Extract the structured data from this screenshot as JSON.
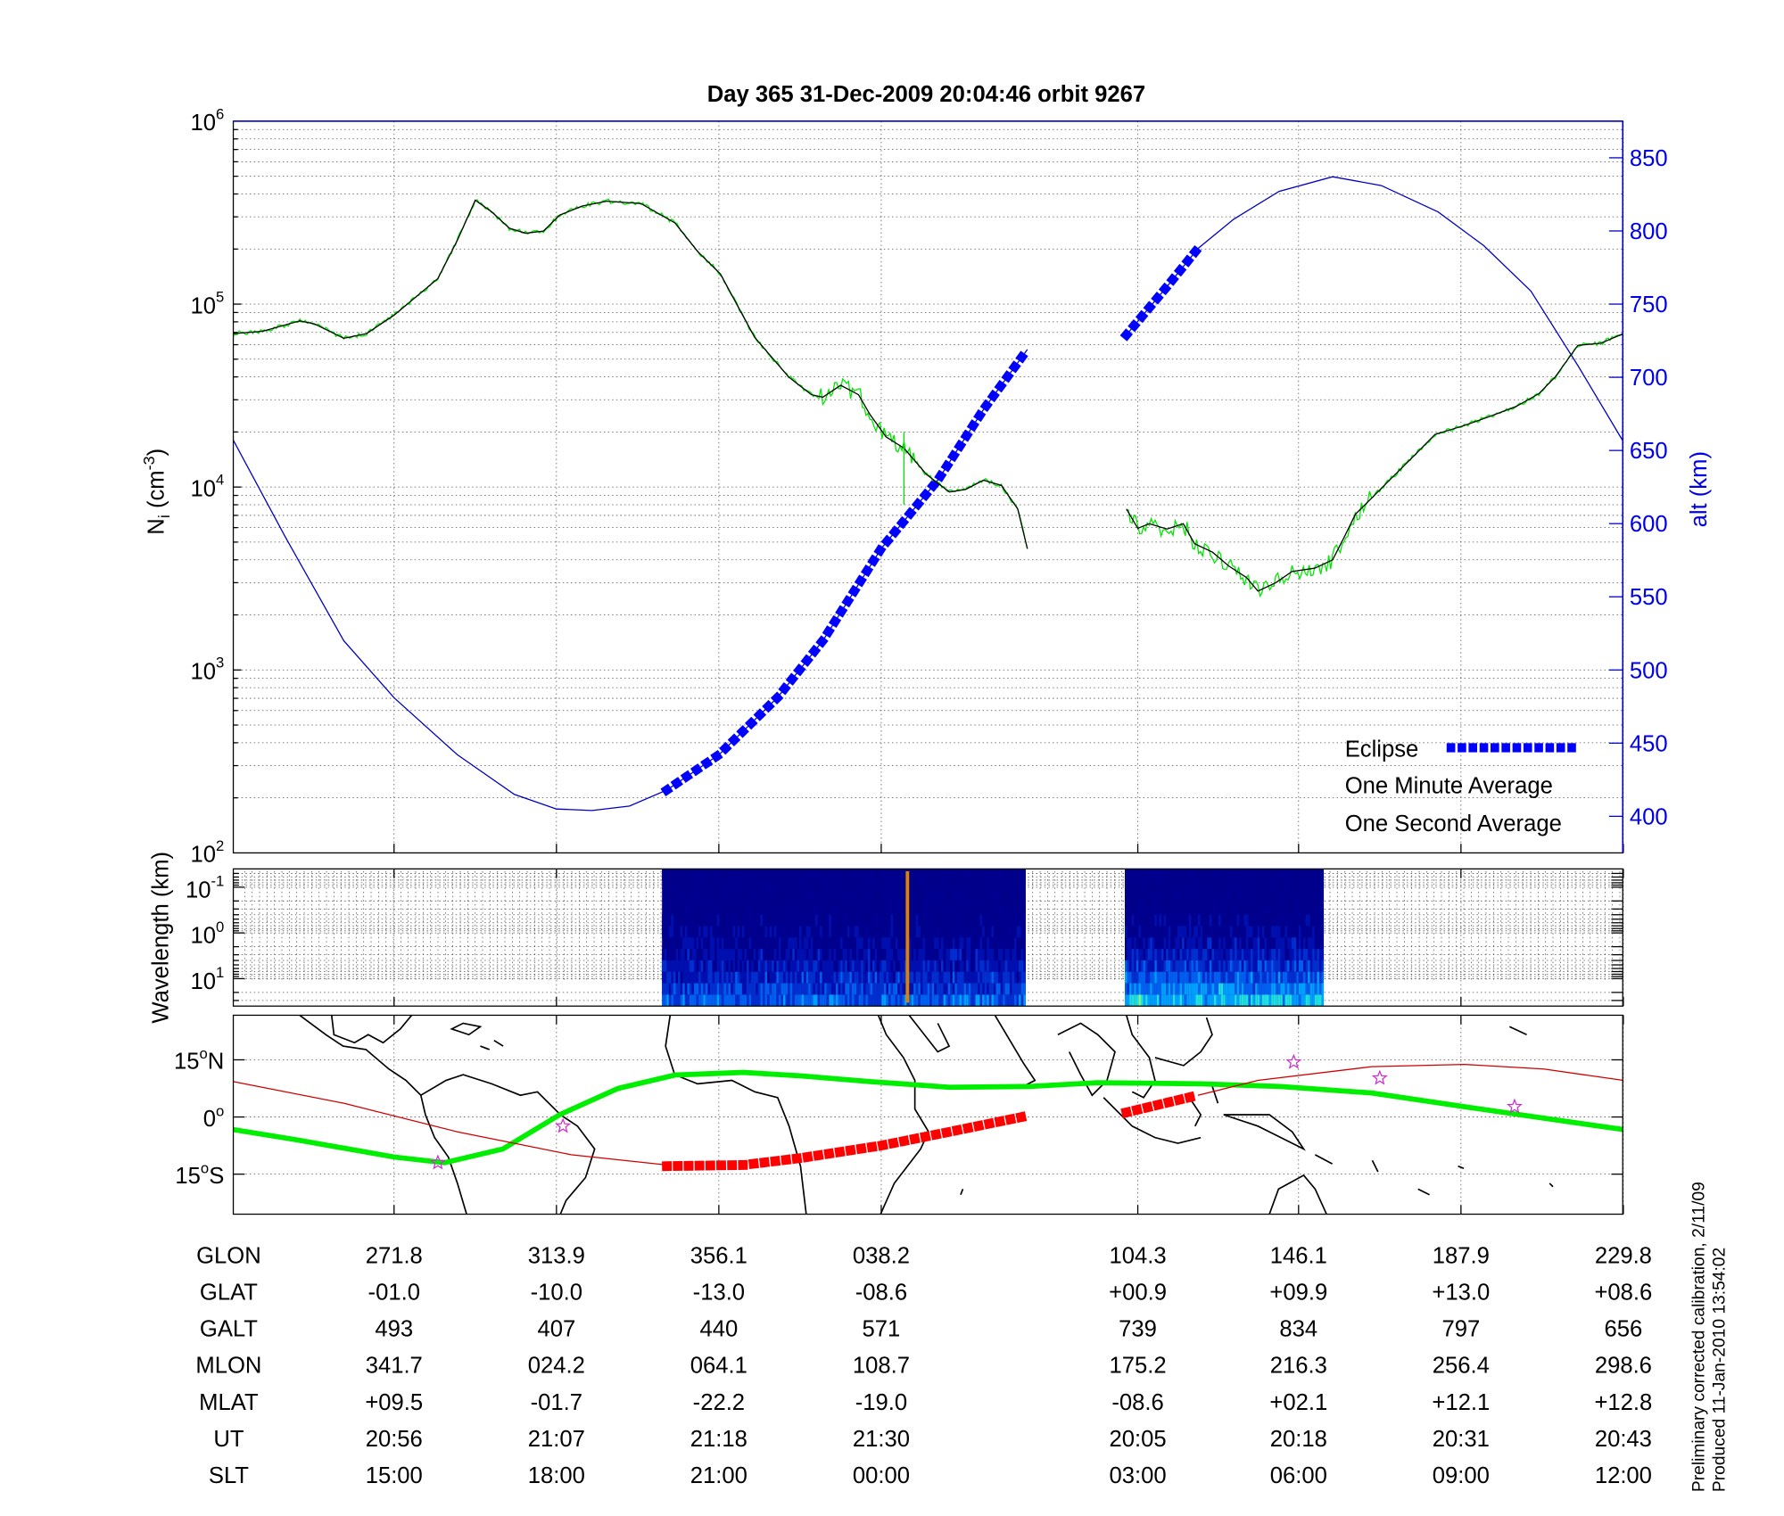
{
  "title": "Day 365  31-Dec-2009 20:04:46   orbit 9267",
  "footer": {
    "line1": "Preliminary corrected calibration, 2/11/09",
    "line2": "Produced 11-Jan-2010 13:54:02"
  },
  "colors": {
    "eclipse": "#0000ff",
    "minute": "#000000",
    "second": "#00e600",
    "altitude": "#0000c0",
    "track": "#d00000",
    "track_eclipse": "#ff0000",
    "dip_equator": "#00ee00",
    "star": "#cc33cc"
  },
  "chart_data": [
    {
      "type": "line",
      "name": "density-altitude",
      "x_unit": "orbit-time index (ticks at table columns)",
      "x_ticks": [
        99,
        199,
        299,
        399,
        557,
        656,
        756,
        856
      ],
      "xlim": [
        0,
        856
      ],
      "ylabel": "N",
      "ylabel_sub": "i",
      "ylabel_unit": " (cm",
      "ylabel_exp": "-3",
      "ylabel_close": ")",
      "yscale": "log",
      "ylim": [
        100,
        1000000
      ],
      "y_ticks": [
        {
          "base": "10",
          "exp": "6",
          "value": 1000000
        },
        {
          "base": "10",
          "exp": "5",
          "value": 100000
        },
        {
          "base": "10",
          "exp": "4",
          "value": 10000
        },
        {
          "base": "10",
          "exp": "3",
          "value": 1000
        },
        {
          "base": "10",
          "exp": "2",
          "value": 100
        }
      ],
      "y2label": "alt (km)",
      "y2lim": [
        375,
        875
      ],
      "y2_ticks": [
        "400",
        "450",
        "500",
        "550",
        "600",
        "650",
        "700",
        "750",
        "800",
        "850"
      ],
      "legend": {
        "placement": "bottom-right",
        "eclipse": "Eclipse",
        "minute": "One Minute Average",
        "second": "One Second Average"
      },
      "series": [
        {
          "name": "One Minute Average",
          "segments": [
            [
              [
                0,
                69000
              ],
              [
                18,
                71000
              ],
              [
                41,
                81000
              ],
              [
                50,
                78000
              ],
              [
                68,
                65000
              ],
              [
                82,
                69000
              ],
              [
                99,
                87000
              ],
              [
                126,
                138000
              ],
              [
                138,
                224000
              ],
              [
                149,
                370000
              ],
              [
                159,
                320000
              ],
              [
                170,
                260000
              ],
              [
                180,
                244000
              ],
              [
                191,
                251000
              ],
              [
                201,
                307000
              ],
              [
                215,
                344000
              ],
              [
                230,
                365000
              ],
              [
                251,
                355000
              ],
              [
                272,
                278000
              ],
              [
                286,
                194000
              ],
              [
                300,
                146000
              ],
              [
                321,
                66000
              ],
              [
                342,
                40000
              ],
              [
                356,
                32000
              ],
              [
                363,
                31000
              ],
              [
                374,
                36000
              ],
              [
                385,
                32000
              ],
              [
                392,
                25000
              ],
              [
                402,
                18800
              ],
              [
                413,
                16300
              ],
              [
                427,
                11700
              ],
              [
                441,
                9400
              ],
              [
                451,
                9700
              ],
              [
                462,
                10900
              ],
              [
                473,
                10200
              ],
              [
                483,
                7600
              ],
              [
                489,
                4600
              ]
            ],
            [
              [
                550,
                7600
              ],
              [
                557,
                5950
              ],
              [
                564,
                6300
              ],
              [
                575,
                5900
              ],
              [
                585,
                6300
              ],
              [
                592,
                4900
              ],
              [
                603,
                4400
              ],
              [
                613,
                3700
              ],
              [
                624,
                3200
              ],
              [
                631,
                2700
              ],
              [
                642,
                3000
              ],
              [
                652,
                3450
              ],
              [
                666,
                3600
              ],
              [
                677,
                4000
              ],
              [
                684,
                5300
              ],
              [
                691,
                7100
              ],
              [
                701,
                8700
              ],
              [
                712,
                10900
              ],
              [
                726,
                14500
              ],
              [
                740,
                19400
              ],
              [
                758,
                21700
              ],
              [
                772,
                24000
              ],
              [
                790,
                27600
              ],
              [
                804,
                32400
              ],
              [
                814,
                40000
              ],
              [
                828,
                59600
              ],
              [
                842,
                61000
              ],
              [
                856,
                69000
              ]
            ]
          ]
        },
        {
          "name": "Altitude (km)",
          "axis": "right",
          "segments": [
            [
              [
                0,
                657
              ],
              [
                32,
                591
              ],
              [
                68,
                520
              ],
              [
                99,
                481
              ],
              [
                138,
                442
              ],
              [
                173,
                415
              ],
              [
                199,
                405
              ],
              [
                221,
                404
              ],
              [
                244,
                407
              ],
              [
                265,
                417
              ],
              [
                267,
                418
              ],
              [
                299,
                442
              ],
              [
                335,
                481
              ],
              [
                363,
                520
              ],
              [
                399,
                583
              ],
              [
                434,
                630
              ],
              [
                462,
                678
              ],
              [
                489,
                719
              ]
            ],
            [
              [
                550,
                729
              ],
              [
                575,
                762
              ],
              [
                594,
                788
              ],
              [
                616,
                808
              ],
              [
                644,
                827
              ],
              [
                677,
                837
              ],
              [
                707,
                831
              ],
              [
                742,
                813
              ],
              [
                770,
                790
              ],
              [
                799,
                759
              ],
              [
                828,
                708
              ],
              [
                856,
                656
              ]
            ]
          ]
        },
        {
          "name": "Eclipse",
          "axis": "right",
          "segments": [
            [
              [
                267,
                418
              ],
              [
                299,
                442
              ],
              [
                335,
                481
              ],
              [
                363,
                520
              ],
              [
                399,
                583
              ],
              [
                434,
                630
              ],
              [
                462,
                678
              ],
              [
                489,
                719
              ]
            ],
            [
              [
                550,
                729
              ],
              [
                575,
                762
              ],
              [
                594,
                788
              ]
            ]
          ]
        }
      ]
    },
    {
      "type": "heatmap",
      "name": "wavelength-spectrogram",
      "ylabel": "Wavelength (km)",
      "yscale": "log",
      "ylim_exp": [
        -1.4,
        1.6
      ],
      "y_ticks": [
        {
          "base": "10",
          "exp": "-1"
        },
        {
          "base": "10",
          "exp": "0"
        },
        {
          "base": "10",
          "exp": "1"
        }
      ],
      "data_spans": [
        [
          264,
          488
        ],
        [
          549,
          671
        ]
      ]
    },
    {
      "type": "line",
      "name": "ground-track-map",
      "ylim": [
        -25.5,
        26.7
      ],
      "y_ticks": [
        {
          "deg": "15",
          "dir": "N",
          "value": 15
        },
        {
          "deg": "0",
          "dir": "",
          "value": 0
        },
        {
          "deg": "15",
          "dir": "S",
          "value": -15
        }
      ],
      "dip_equator": [
        [
          0,
          -3.3
        ],
        [
          39,
          -6
        ],
        [
          99,
          -10.5
        ],
        [
          130,
          -12
        ],
        [
          166,
          -8.4
        ],
        [
          201,
          0.6
        ],
        [
          237,
          7.5
        ],
        [
          272,
          11
        ],
        [
          314,
          11.7
        ],
        [
          349,
          10.8
        ],
        [
          392,
          9.3
        ],
        [
          441,
          7.8
        ],
        [
          490,
          8
        ],
        [
          532,
          9
        ],
        [
          596,
          8.7
        ],
        [
          645,
          8
        ],
        [
          701,
          6.3
        ],
        [
          758,
          2.7
        ],
        [
          807,
          -0.3
        ],
        [
          856,
          -3.3
        ]
      ],
      "track": [
        [
          [
            0,
            9.3
          ],
          [
            68,
            3.6
          ],
          [
            138,
            -3.9
          ],
          [
            208,
            -9.9
          ],
          [
            267,
            -12.6
          ]
        ],
        [
          [
            594,
            5.7
          ],
          [
            631,
            9.6
          ],
          [
            701,
            13.2
          ],
          [
            758,
            13.8
          ],
          [
            807,
            12.6
          ],
          [
            856,
            9.6
          ]
        ]
      ],
      "track_eclipse": [
        [
          [
            267,
            -12.9
          ],
          [
            314,
            -12.6
          ],
          [
            349,
            -10.8
          ],
          [
            399,
            -7.5
          ],
          [
            441,
            -3.9
          ],
          [
            489,
            0.3
          ]
        ],
        [
          [
            550,
            1.2
          ],
          [
            594,
            5.7
          ]
        ]
      ],
      "stars": [
        [
          126,
          -12
        ],
        [
          203,
          -2.4
        ],
        [
          653,
          14.4
        ],
        [
          706,
          10.2
        ],
        [
          789,
          2.7
        ]
      ]
    }
  ],
  "table": {
    "columns_x": [
      99,
      199,
      299,
      399,
      557,
      656,
      756,
      856
    ],
    "rows": [
      {
        "label": "GLON",
        "values": [
          "271.8",
          "313.9",
          "356.1",
          "038.2",
          "104.3",
          "146.1",
          "187.9",
          "229.8"
        ]
      },
      {
        "label": "GLAT",
        "values": [
          "-01.0",
          "-10.0",
          "-13.0",
          "-08.6",
          "+00.9",
          "+09.9",
          "+13.0",
          "+08.6"
        ]
      },
      {
        "label": "GALT",
        "values": [
          "493",
          "407",
          "440",
          "571",
          "739",
          "834",
          "797",
          "656"
        ]
      },
      {
        "label": "MLON",
        "values": [
          "341.7",
          "024.2",
          "064.1",
          "108.7",
          "175.2",
          "216.3",
          "256.4",
          "298.6"
        ]
      },
      {
        "label": "MLAT",
        "values": [
          "+09.5",
          "-01.7",
          "-22.2",
          "-19.0",
          "-08.6",
          "+02.1",
          "+12.1",
          "+12.8"
        ]
      },
      {
        "label": "UT",
        "values": [
          "20:56",
          "21:07",
          "21:18",
          "21:30",
          "20:05",
          "20:18",
          "20:31",
          "20:43"
        ]
      },
      {
        "label": "SLT",
        "values": [
          "15:00",
          "18:00",
          "21:00",
          "00:00",
          "03:00",
          "06:00",
          "09:00",
          "12:00"
        ]
      }
    ]
  }
}
